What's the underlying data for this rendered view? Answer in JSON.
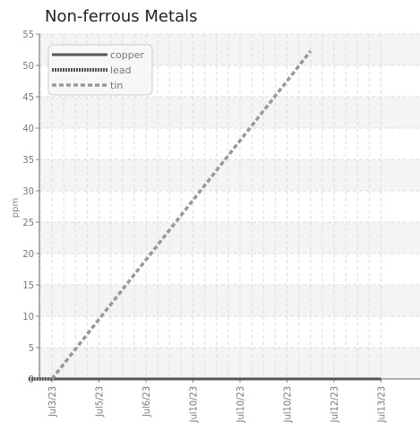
{
  "chart_data": {
    "type": "line",
    "title": "Non-ferrous Metals",
    "xlabel": "",
    "ylabel": "ppm",
    "categories": [
      "Jul3/23",
      "Jul5/23",
      "Jul6/23",
      "Jul10/23",
      "Jul10/23",
      "Jul10/23",
      "Jul12/23",
      "Jul13/23"
    ],
    "ylim": [
      0,
      55
    ],
    "yticks": [
      0,
      5,
      10,
      15,
      20,
      25,
      30,
      35,
      40,
      45,
      50,
      55
    ],
    "grid": true,
    "legend_position": "top-left",
    "series": [
      {
        "name": "copper",
        "style": "solid",
        "color": "#555555",
        "points": [
          [
            1.0,
            0
          ],
          [
            2.0,
            0
          ],
          [
            3.0,
            0
          ],
          [
            4.0,
            0
          ],
          [
            5.0,
            0
          ],
          [
            6.0,
            0
          ],
          [
            7.0,
            0
          ],
          [
            8.0,
            0
          ]
        ]
      },
      {
        "name": "lead",
        "style": "dotted",
        "color": "#555555",
        "points": [
          [
            0.5,
            0
          ],
          [
            1.0,
            0
          ]
        ]
      },
      {
        "name": "tin",
        "style": "dashed",
        "color": "#999999",
        "points": [
          [
            1.0,
            0
          ],
          [
            2.0,
            9.5
          ],
          [
            3.0,
            19.0
          ],
          [
            4.0,
            28.5
          ],
          [
            5.0,
            38.0
          ],
          [
            6.0,
            47.5
          ],
          [
            6.5,
            52.3
          ]
        ]
      }
    ]
  }
}
